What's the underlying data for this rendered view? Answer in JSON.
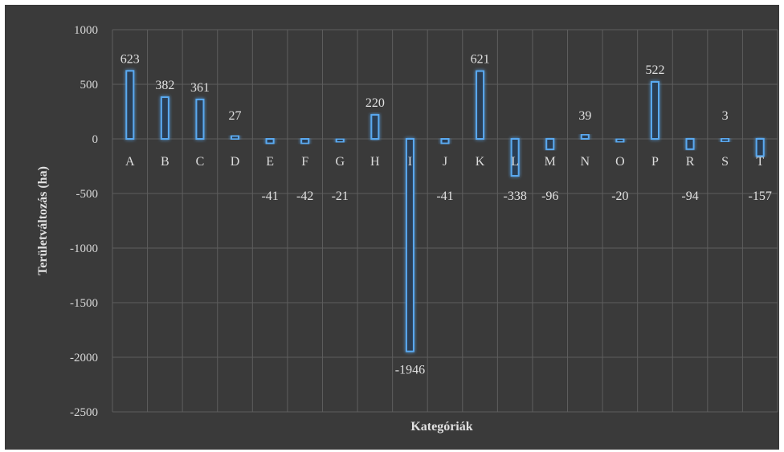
{
  "chart_data": {
    "type": "bar",
    "xlabel": "Kategóriák",
    "ylabel": "Területváltozás (ha)",
    "ylim": [
      -2500,
      1000
    ],
    "yticks": [
      1000,
      500,
      0,
      -500,
      -1000,
      -1500,
      -2000,
      -2500
    ],
    "grid": true,
    "categories": [
      "A",
      "B",
      "C",
      "D",
      "E",
      "F",
      "G",
      "H",
      "I",
      "J",
      "K",
      "L",
      "M",
      "N",
      "O",
      "P",
      "R",
      "S",
      "T"
    ],
    "values": [
      623,
      382,
      361,
      27,
      -41,
      -42,
      -21,
      220,
      -1946,
      -41,
      621,
      -338,
      -96,
      39,
      -20,
      522,
      -94,
      3,
      -157
    ],
    "colors": {
      "bar_stroke": "#5aa9f0",
      "bar_fill": "#2a3d52",
      "background": "#3a3a3a",
      "grid": "#5e5e5e"
    }
  }
}
